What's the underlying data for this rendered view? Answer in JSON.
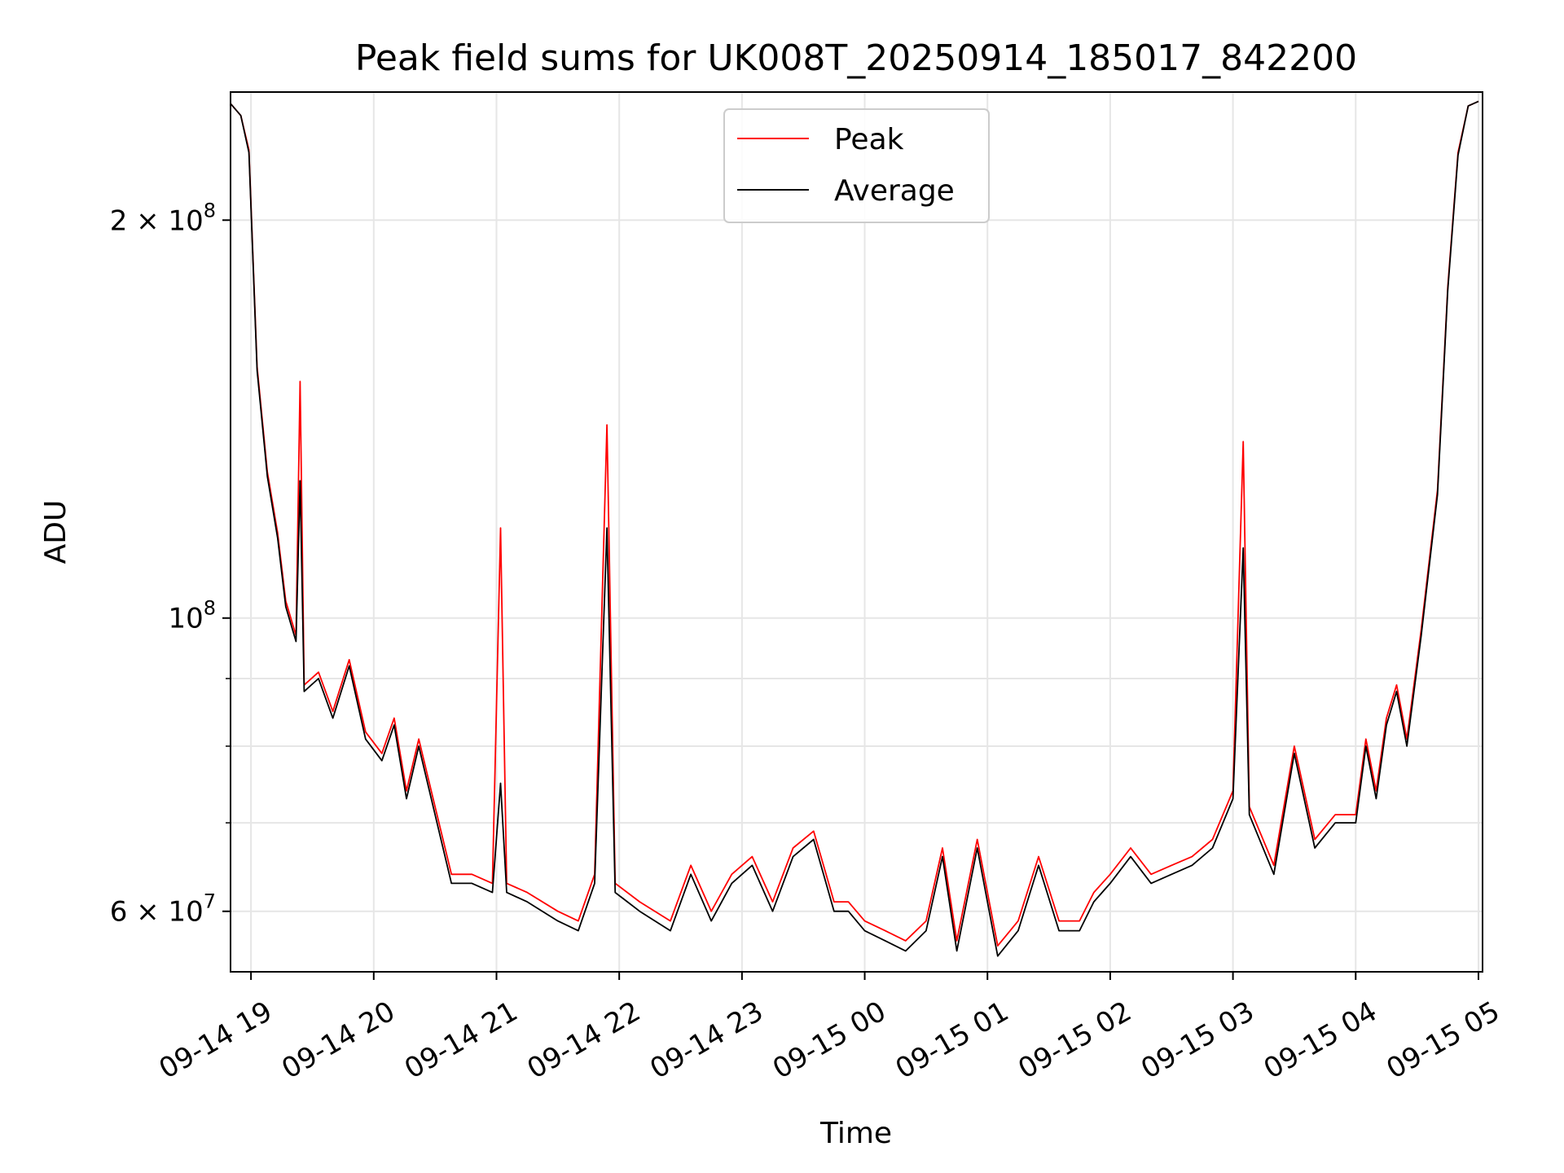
{
  "chart_data": {
    "type": "line",
    "title": "Peak field sums for UK008T_20250914_185017_842200",
    "xlabel": "Time",
    "ylabel": "ADU",
    "y_scale": "log",
    "ylim": [
      54000000,
      250000000
    ],
    "xlim": [
      "2025-09-14 18:50",
      "2025-09-15 05:02"
    ],
    "grid": true,
    "legend_position": "top-center",
    "x_ticks": [
      {
        "t": "2025-09-14 19:00",
        "label": "09-14 19"
      },
      {
        "t": "2025-09-14 20:00",
        "label": "09-14 20"
      },
      {
        "t": "2025-09-14 21:00",
        "label": "09-14 21"
      },
      {
        "t": "2025-09-14 22:00",
        "label": "09-14 22"
      },
      {
        "t": "2025-09-14 23:00",
        "label": "09-14 23"
      },
      {
        "t": "2025-09-15 00:00",
        "label": "09-15 00"
      },
      {
        "t": "2025-09-15 01:00",
        "label": "09-15 01"
      },
      {
        "t": "2025-09-15 02:00",
        "label": "09-15 02"
      },
      {
        "t": "2025-09-15 03:00",
        "label": "09-15 03"
      },
      {
        "t": "2025-09-15 04:00",
        "label": "09-15 04"
      },
      {
        "t": "2025-09-15 05:00",
        "label": "09-15 05"
      }
    ],
    "y_ticks_major": [
      {
        "value": 60000000,
        "mantissa": "6",
        "exp": "7"
      },
      {
        "value": 100000000,
        "mantissa": "",
        "exp": "8"
      },
      {
        "value": 200000000,
        "mantissa": "2",
        "exp": "8"
      }
    ],
    "y_ticks_minor": [
      70000000,
      80000000,
      90000000
    ],
    "series": [
      {
        "name": "Peak",
        "color": "#ff0000",
        "points": [
          [
            "2025-09-14 18:50",
            245000000
          ],
          [
            "2025-09-14 18:55",
            240000000
          ],
          [
            "2025-09-14 18:59",
            226000000
          ],
          [
            "2025-09-14 19:03",
            155000000
          ],
          [
            "2025-09-14 19:08",
            129000000
          ],
          [
            "2025-09-14 19:13",
            116000000
          ],
          [
            "2025-09-14 19:17",
            103000000
          ],
          [
            "2025-09-14 19:22",
            97000000
          ],
          [
            "2025-09-14 19:24",
            151000000
          ],
          [
            "2025-09-14 19:26",
            89000000
          ],
          [
            "2025-09-14 19:33",
            91000000
          ],
          [
            "2025-09-14 19:40",
            85000000
          ],
          [
            "2025-09-14 19:48",
            93000000
          ],
          [
            "2025-09-14 19:56",
            82000000
          ],
          [
            "2025-09-14 20:04",
            79000000
          ],
          [
            "2025-09-14 20:10",
            84000000
          ],
          [
            "2025-09-14 20:16",
            74000000
          ],
          [
            "2025-09-14 20:22",
            81000000
          ],
          [
            "2025-09-14 20:30",
            72000000
          ],
          [
            "2025-09-14 20:38",
            64000000
          ],
          [
            "2025-09-14 20:48",
            64000000
          ],
          [
            "2025-09-14 20:58",
            63000000
          ],
          [
            "2025-09-14 21:02",
            117000000
          ],
          [
            "2025-09-14 21:05",
            63000000
          ],
          [
            "2025-09-14 21:15",
            62000000
          ],
          [
            "2025-09-14 21:30",
            60000000
          ],
          [
            "2025-09-14 21:40",
            59000000
          ],
          [
            "2025-09-14 21:48",
            64000000
          ],
          [
            "2025-09-14 21:54",
            140000000
          ],
          [
            "2025-09-14 21:58",
            63000000
          ],
          [
            "2025-09-14 22:10",
            61000000
          ],
          [
            "2025-09-14 22:25",
            59000000
          ],
          [
            "2025-09-14 22:35",
            65000000
          ],
          [
            "2025-09-14 22:45",
            60000000
          ],
          [
            "2025-09-14 22:55",
            64000000
          ],
          [
            "2025-09-14 23:05",
            66000000
          ],
          [
            "2025-09-14 23:15",
            61000000
          ],
          [
            "2025-09-14 23:25",
            67000000
          ],
          [
            "2025-09-14 23:35",
            69000000
          ],
          [
            "2025-09-14 23:45",
            61000000
          ],
          [
            "2025-09-14 23:52",
            61000000
          ],
          [
            "2025-09-15 00:00",
            59000000
          ],
          [
            "2025-09-15 00:10",
            58000000
          ],
          [
            "2025-09-15 00:20",
            57000000
          ],
          [
            "2025-09-15 00:30",
            59000000
          ],
          [
            "2025-09-15 00:38",
            67000000
          ],
          [
            "2025-09-15 00:45",
            57000000
          ],
          [
            "2025-09-15 00:55",
            68000000
          ],
          [
            "2025-09-15 01:05",
            56500000
          ],
          [
            "2025-09-15 01:15",
            59000000
          ],
          [
            "2025-09-15 01:25",
            66000000
          ],
          [
            "2025-09-15 01:35",
            59000000
          ],
          [
            "2025-09-15 01:45",
            59000000
          ],
          [
            "2025-09-15 01:52",
            62000000
          ],
          [
            "2025-09-15 02:00",
            64000000
          ],
          [
            "2025-09-15 02:10",
            67000000
          ],
          [
            "2025-09-15 02:20",
            64000000
          ],
          [
            "2025-09-15 02:30",
            65000000
          ],
          [
            "2025-09-15 02:40",
            66000000
          ],
          [
            "2025-09-15 02:50",
            68000000
          ],
          [
            "2025-09-15 03:00",
            74000000
          ],
          [
            "2025-09-15 03:05",
            136000000
          ],
          [
            "2025-09-15 03:08",
            72000000
          ],
          [
            "2025-09-15 03:20",
            65000000
          ],
          [
            "2025-09-15 03:30",
            80000000
          ],
          [
            "2025-09-15 03:40",
            68000000
          ],
          [
            "2025-09-15 03:50",
            71000000
          ],
          [
            "2025-09-15 04:00",
            71000000
          ],
          [
            "2025-09-15 04:05",
            81000000
          ],
          [
            "2025-09-15 04:10",
            74000000
          ],
          [
            "2025-09-15 04:15",
            84000000
          ],
          [
            "2025-09-15 04:20",
            89000000
          ],
          [
            "2025-09-15 04:25",
            81000000
          ],
          [
            "2025-09-15 04:32",
            98000000
          ],
          [
            "2025-09-15 04:40",
            125000000
          ],
          [
            "2025-09-15 04:45",
            178000000
          ],
          [
            "2025-09-15 04:50",
            225000000
          ],
          [
            "2025-09-15 04:55",
            244000000
          ],
          [
            "2025-09-15 05:00",
            246000000
          ]
        ]
      },
      {
        "name": "Average",
        "color": "#000000",
        "points": [
          [
            "2025-09-14 18:50",
            245000000
          ],
          [
            "2025-09-14 18:55",
            240000000
          ],
          [
            "2025-09-14 18:59",
            225000000
          ],
          [
            "2025-09-14 19:03",
            154000000
          ],
          [
            "2025-09-14 19:08",
            128000000
          ],
          [
            "2025-09-14 19:13",
            115000000
          ],
          [
            "2025-09-14 19:17",
            102000000
          ],
          [
            "2025-09-14 19:22",
            96000000
          ],
          [
            "2025-09-14 19:24",
            127000000
          ],
          [
            "2025-09-14 19:26",
            88000000
          ],
          [
            "2025-09-14 19:33",
            90000000
          ],
          [
            "2025-09-14 19:40",
            84000000
          ],
          [
            "2025-09-14 19:48",
            92000000
          ],
          [
            "2025-09-14 19:56",
            81000000
          ],
          [
            "2025-09-14 20:04",
            78000000
          ],
          [
            "2025-09-14 20:10",
            83000000
          ],
          [
            "2025-09-14 20:16",
            73000000
          ],
          [
            "2025-09-14 20:22",
            80000000
          ],
          [
            "2025-09-14 20:30",
            71000000
          ],
          [
            "2025-09-14 20:38",
            63000000
          ],
          [
            "2025-09-14 20:48",
            63000000
          ],
          [
            "2025-09-14 20:58",
            62000000
          ],
          [
            "2025-09-14 21:02",
            75000000
          ],
          [
            "2025-09-14 21:05",
            62000000
          ],
          [
            "2025-09-14 21:15",
            61000000
          ],
          [
            "2025-09-14 21:30",
            59000000
          ],
          [
            "2025-09-14 21:40",
            58000000
          ],
          [
            "2025-09-14 21:48",
            63000000
          ],
          [
            "2025-09-14 21:54",
            117000000
          ],
          [
            "2025-09-14 21:58",
            62000000
          ],
          [
            "2025-09-14 22:10",
            60000000
          ],
          [
            "2025-09-14 22:25",
            58000000
          ],
          [
            "2025-09-14 22:35",
            64000000
          ],
          [
            "2025-09-14 22:45",
            59000000
          ],
          [
            "2025-09-14 22:55",
            63000000
          ],
          [
            "2025-09-14 23:05",
            65000000
          ],
          [
            "2025-09-14 23:15",
            60000000
          ],
          [
            "2025-09-14 23:25",
            66000000
          ],
          [
            "2025-09-14 23:35",
            68000000
          ],
          [
            "2025-09-14 23:45",
            60000000
          ],
          [
            "2025-09-14 23:52",
            60000000
          ],
          [
            "2025-09-15 00:00",
            58000000
          ],
          [
            "2025-09-15 00:10",
            57000000
          ],
          [
            "2025-09-15 00:20",
            56000000
          ],
          [
            "2025-09-15 00:30",
            58000000
          ],
          [
            "2025-09-15 00:38",
            66000000
          ],
          [
            "2025-09-15 00:45",
            56000000
          ],
          [
            "2025-09-15 00:55",
            67000000
          ],
          [
            "2025-09-15 01:05",
            55500000
          ],
          [
            "2025-09-15 01:15",
            58000000
          ],
          [
            "2025-09-15 01:25",
            65000000
          ],
          [
            "2025-09-15 01:35",
            58000000
          ],
          [
            "2025-09-15 01:45",
            58000000
          ],
          [
            "2025-09-15 01:52",
            61000000
          ],
          [
            "2025-09-15 02:00",
            63000000
          ],
          [
            "2025-09-15 02:10",
            66000000
          ],
          [
            "2025-09-15 02:20",
            63000000
          ],
          [
            "2025-09-15 02:30",
            64000000
          ],
          [
            "2025-09-15 02:40",
            65000000
          ],
          [
            "2025-09-15 02:50",
            67000000
          ],
          [
            "2025-09-15 03:00",
            73000000
          ],
          [
            "2025-09-15 03:05",
            113000000
          ],
          [
            "2025-09-15 03:08",
            71000000
          ],
          [
            "2025-09-15 03:20",
            64000000
          ],
          [
            "2025-09-15 03:30",
            79000000
          ],
          [
            "2025-09-15 03:40",
            67000000
          ],
          [
            "2025-09-15 03:50",
            70000000
          ],
          [
            "2025-09-15 04:00",
            70000000
          ],
          [
            "2025-09-15 04:05",
            80000000
          ],
          [
            "2025-09-15 04:10",
            73000000
          ],
          [
            "2025-09-15 04:15",
            83000000
          ],
          [
            "2025-09-15 04:20",
            88000000
          ],
          [
            "2025-09-15 04:25",
            80000000
          ],
          [
            "2025-09-15 04:32",
            97000000
          ],
          [
            "2025-09-15 04:40",
            124000000
          ],
          [
            "2025-09-15 04:45",
            177000000
          ],
          [
            "2025-09-15 04:50",
            224000000
          ],
          [
            "2025-09-15 04:55",
            244000000
          ],
          [
            "2025-09-15 05:00",
            246000000
          ]
        ]
      }
    ]
  }
}
